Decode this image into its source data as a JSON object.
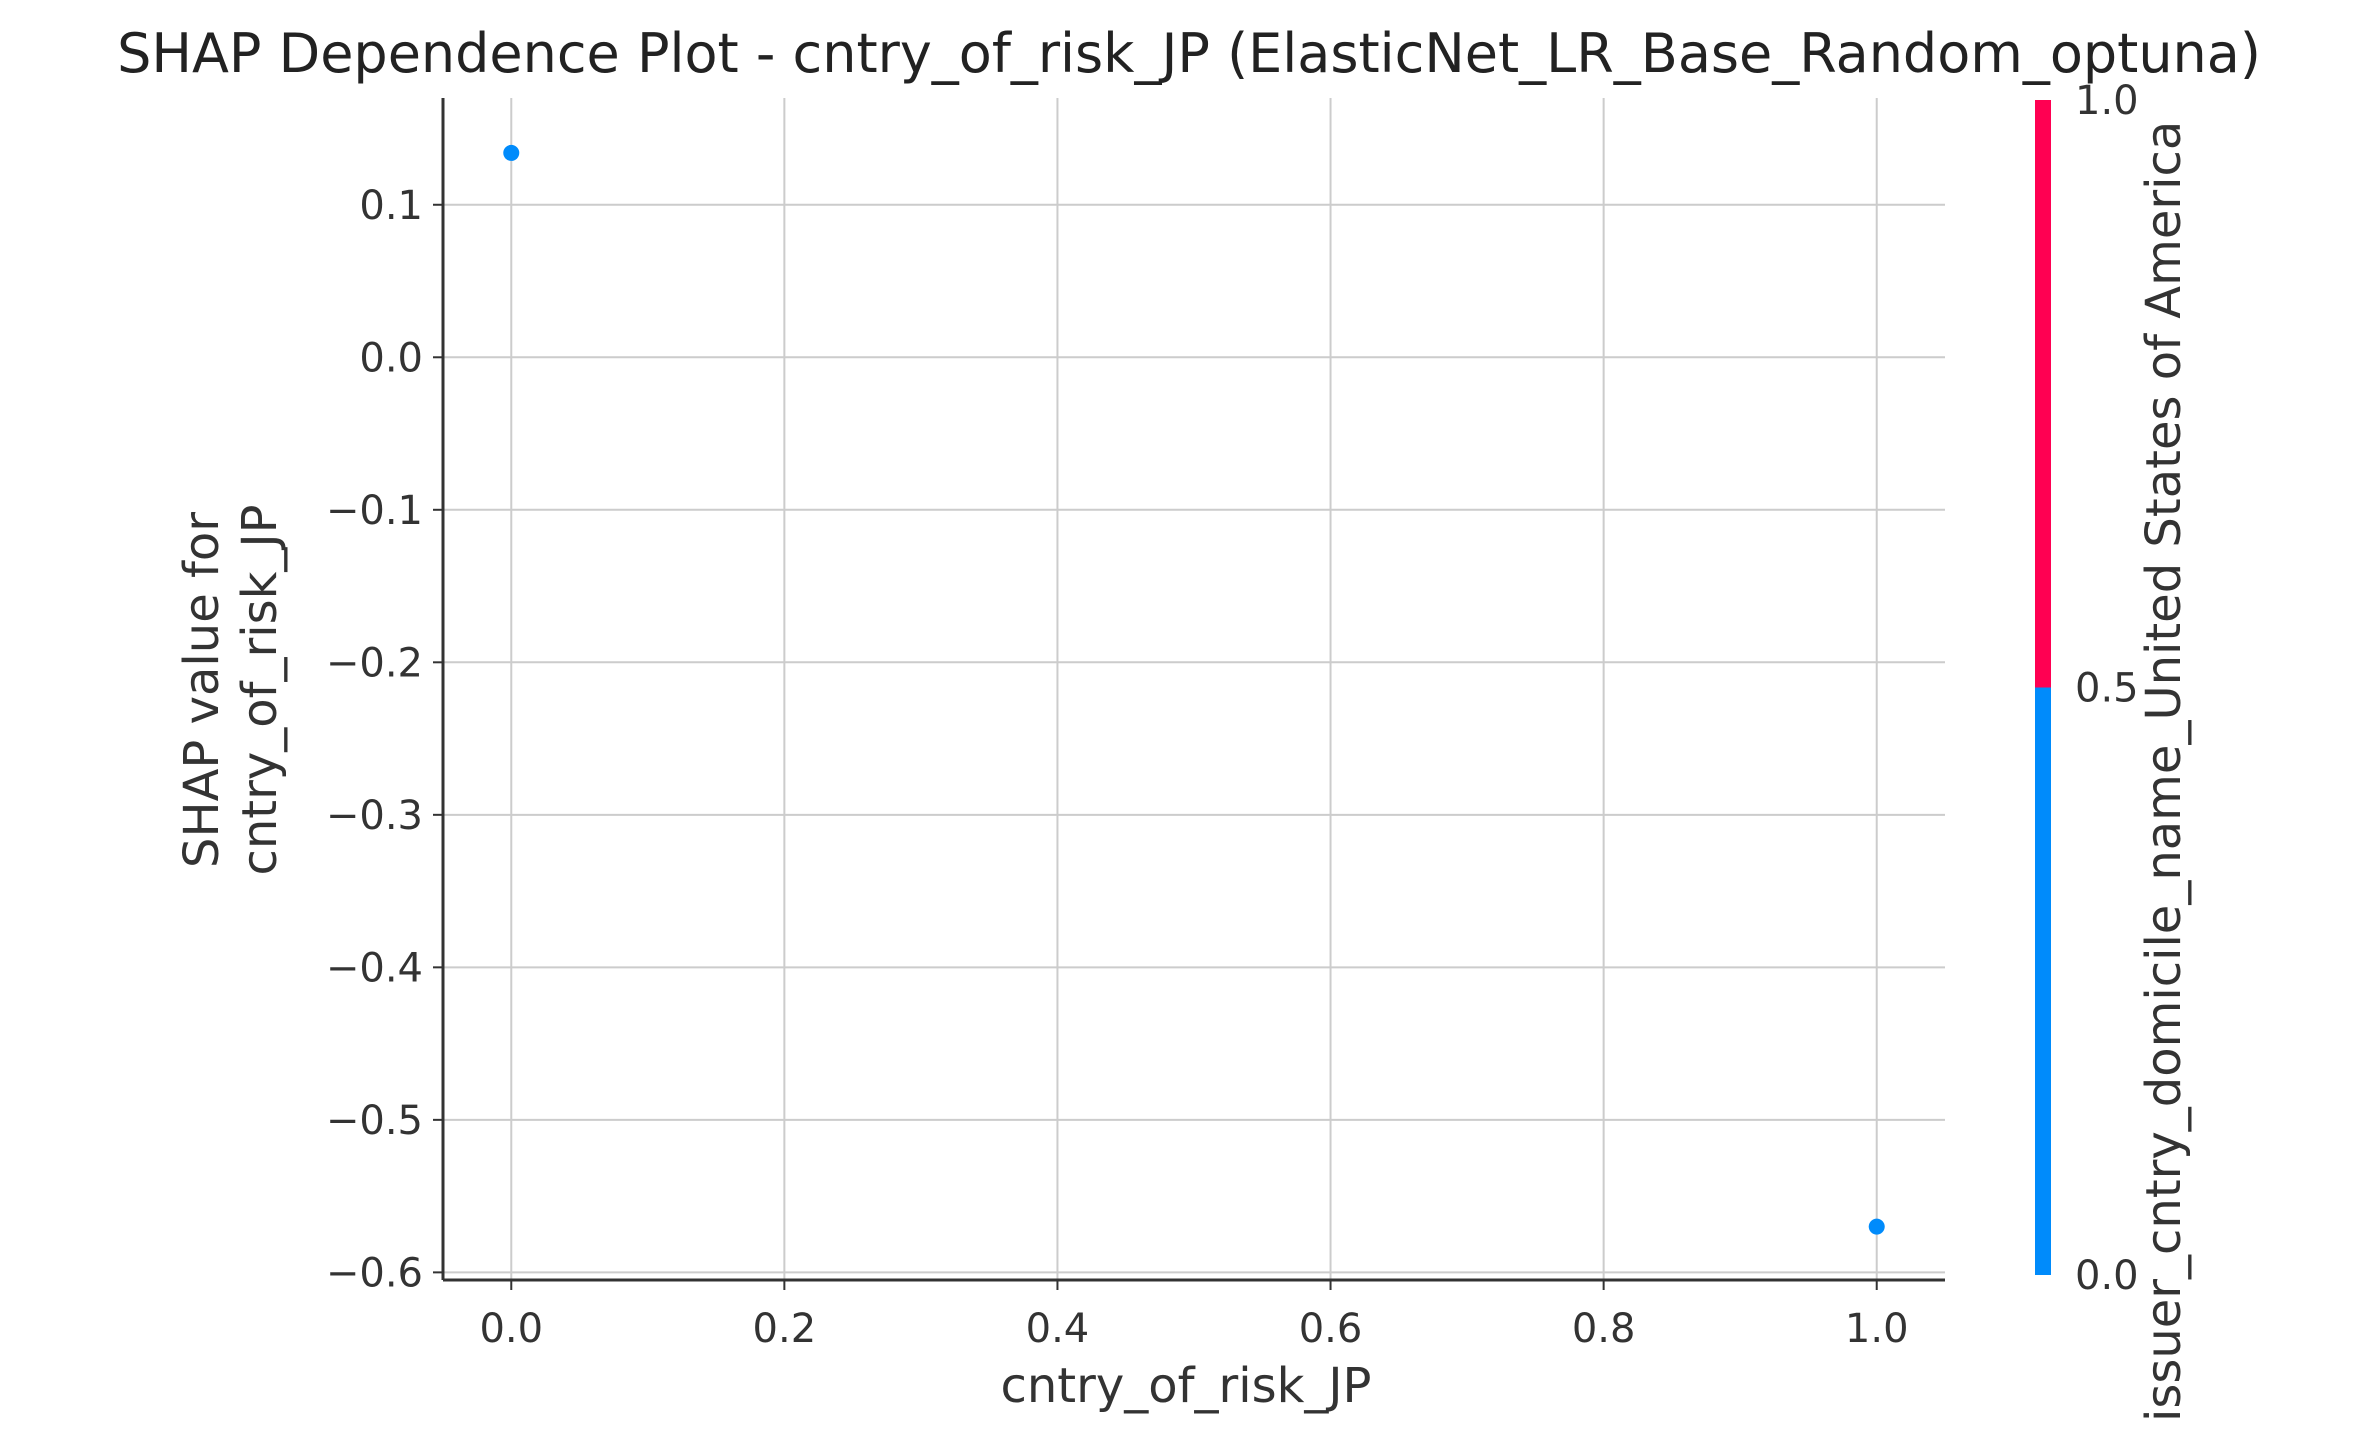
{
  "chart_data": {
    "type": "scatter",
    "title": "SHAP Dependence Plot - cntry_of_risk_JP (ElasticNet_LR_Base_Random_optuna)",
    "xlabel": "cntry_of_risk_JP",
    "ylabel_lines": [
      "SHAP value for",
      "cntry_of_risk_JP"
    ],
    "xlim": [
      -0.05,
      1.05
    ],
    "ylim": [
      -0.605,
      0.17
    ],
    "xticks": [
      {
        "value": 0.0,
        "label": "0.0"
      },
      {
        "value": 0.2,
        "label": "0.2"
      },
      {
        "value": 0.4,
        "label": "0.4"
      },
      {
        "value": 0.6,
        "label": "0.6"
      },
      {
        "value": 0.8,
        "label": "0.8"
      },
      {
        "value": 1.0,
        "label": "1.0"
      }
    ],
    "yticks": [
      {
        "value": 0.1,
        "label": "0.1"
      },
      {
        "value": 0.0,
        "label": "0.0"
      },
      {
        "value": -0.1,
        "label": "−0.1"
      },
      {
        "value": -0.2,
        "label": "−0.2"
      },
      {
        "value": -0.3,
        "label": "−0.3"
      },
      {
        "value": -0.4,
        "label": "−0.4"
      },
      {
        "value": -0.5,
        "label": "−0.5"
      },
      {
        "value": -0.6,
        "label": "−0.6"
      }
    ],
    "grid": true,
    "points": [
      {
        "x": 0.0,
        "y": 0.134,
        "color_value": 0.0
      },
      {
        "x": 1.0,
        "y": -0.57,
        "color_value": 0.0
      }
    ],
    "colorbar": {
      "label": "issuer_cntry_domicile_name_United States of America",
      "range": [
        0.0,
        1.0
      ],
      "ticks": [
        {
          "value": 1.0,
          "label": "1.0"
        },
        {
          "value": 0.5,
          "label": "0.5"
        },
        {
          "value": 0.0,
          "label": "0.0"
        }
      ],
      "low_color": "#008bfb",
      "high_color": "#ff0052"
    },
    "colors": {
      "grid": "#cccccc",
      "axis": "#333333",
      "point": "#008bfb"
    }
  }
}
